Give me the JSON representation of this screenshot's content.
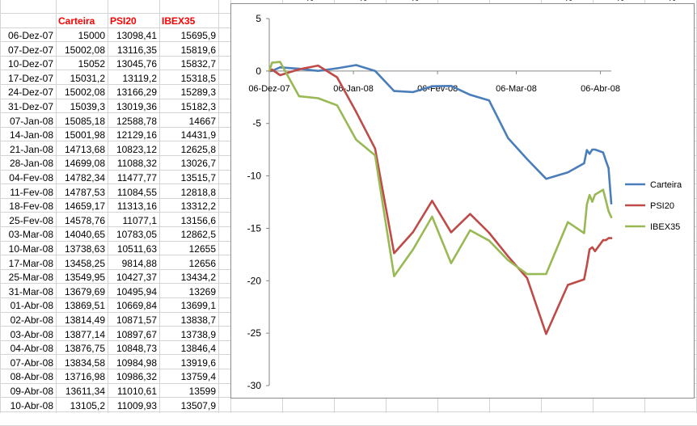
{
  "table": {
    "headers": [
      "Carteira",
      "PSI20",
      "IBEX35"
    ],
    "rows": [
      [
        "06-Dez-07",
        "15000",
        "13098,41",
        "15695,9"
      ],
      [
        "07-Dez-07",
        "15002,08",
        "13116,35",
        "15819,6"
      ],
      [
        "10-Dez-07",
        "15052",
        "13045,76",
        "15832,7"
      ],
      [
        "17-Dez-07",
        "15031,2",
        "13119,2",
        "15318,5"
      ],
      [
        "24-Dez-07",
        "15002,08",
        "13166,29",
        "15289,3"
      ],
      [
        "31-Dez-07",
        "15039,3",
        "13019,36",
        "15182,3"
      ],
      [
        "07-Jan-08",
        "15085,18",
        "12588,78",
        "14667"
      ],
      [
        "14-Jan-08",
        "15001,98",
        "12129,16",
        "14431,9"
      ],
      [
        "21-Jan-08",
        "14713,68",
        "10823,12",
        "12625,8"
      ],
      [
        "28-Jan-08",
        "14699,08",
        "11088,32",
        "13026,7"
      ],
      [
        "04-Fev-08",
        "14782,34",
        "11477,77",
        "13515,7"
      ],
      [
        "11-Fev-08",
        "14787,53",
        "11084,55",
        "12818,8"
      ],
      [
        "18-Fev-08",
        "14659,17",
        "11313,16",
        "13312,2"
      ],
      [
        "25-Fev-08",
        "14578,76",
        "11077,1",
        "13156,6"
      ],
      [
        "03-Mar-08",
        "14040,65",
        "10783,05",
        "12862,5"
      ],
      [
        "10-Mar-08",
        "13738,63",
        "10511,63",
        "12655"
      ],
      [
        "17-Mar-08",
        "13458,25",
        "9814,88",
        "12656"
      ],
      [
        "25-Mar-08",
        "13549,95",
        "10427,37",
        "13434,2"
      ],
      [
        "31-Mar-08",
        "13679,69",
        "10495,94",
        "13269"
      ],
      [
        "01-Abr-08",
        "13869,51",
        "10669,84",
        "13699,1"
      ],
      [
        "02-Abr-08",
        "13814,49",
        "10871,57",
        "13838,7"
      ],
      [
        "03-Abr-08",
        "13877,14",
        "10897,67",
        "13738,9"
      ],
      [
        "04-Abr-08",
        "13876,75",
        "10848,73",
        "13846,4"
      ],
      [
        "07-Abr-08",
        "13834,58",
        "10984,98",
        "13919,6"
      ],
      [
        "08-Abr-08",
        "13716,98",
        "10986,32",
        "13759,4"
      ],
      [
        "09-Abr-08",
        "13611,34",
        "11010,61",
        "13599"
      ],
      [
        "10-Abr-08",
        "13105,2",
        "11009,93",
        "13507,9"
      ]
    ]
  },
  "header_fragments": [
    "%",
    "%",
    "%",
    "%",
    "%",
    "%"
  ],
  "chart_data": {
    "type": "line",
    "title": "",
    "xlabel": "",
    "ylabel": "",
    "ylim": [
      -30,
      5
    ],
    "yticks": [
      5,
      0,
      -5,
      -10,
      -15,
      -20,
      -25,
      -30
    ],
    "ytick_labels": [
      "5",
      "0",
      "-5",
      "-10",
      "-15",
      "-20",
      "-25",
      "-30"
    ],
    "xticks": [
      "06-Dez-07",
      "06-Jan-08",
      "06-Fev-08",
      "06-Mar-08",
      "06-Abr-08"
    ],
    "x": [
      "06-Dez-07",
      "07-Dez-07",
      "10-Dez-07",
      "17-Dez-07",
      "24-Dez-07",
      "31-Dez-07",
      "07-Jan-08",
      "14-Jan-08",
      "21-Jan-08",
      "28-Jan-08",
      "04-Fev-08",
      "11-Fev-08",
      "18-Fev-08",
      "25-Fev-08",
      "03-Mar-08",
      "10-Mar-08",
      "17-Mar-08",
      "25-Mar-08",
      "31-Mar-08",
      "01-Abr-08",
      "02-Abr-08",
      "03-Abr-08",
      "04-Abr-08",
      "07-Abr-08",
      "08-Abr-08",
      "09-Abr-08",
      "10-Abr-08"
    ],
    "grid": false,
    "legend": "right",
    "series": [
      {
        "name": "Carteira",
        "color": "#4a7ebb",
        "values": [
          0,
          0.01,
          0.35,
          0.21,
          0.01,
          0.26,
          0.57,
          0.01,
          -1.91,
          -2.01,
          -1.45,
          -1.42,
          -2.27,
          -2.81,
          -6.4,
          -8.41,
          -10.28,
          -9.67,
          -8.8,
          -7.54,
          -7.9,
          -7.49,
          -7.49,
          -7.77,
          -8.55,
          -9.26,
          -12.63
        ]
      },
      {
        "name": "PSI20",
        "color": "#be4b48",
        "values": [
          0,
          0.14,
          -0.4,
          0.16,
          0.52,
          -0.6,
          -3.89,
          -7.4,
          -17.37,
          -15.35,
          -12.38,
          -15.38,
          -13.63,
          -15.43,
          -17.68,
          -19.75,
          -25.07,
          -20.4,
          -19.87,
          -18.54,
          -17.01,
          -16.81,
          -17.18,
          -16.13,
          -16.13,
          -15.94,
          -15.94
        ]
      },
      {
        "name": "IBEX35",
        "color": "#98b954",
        "values": [
          0,
          0.79,
          0.87,
          -2.41,
          -2.59,
          -3.27,
          -6.55,
          -8.05,
          -19.56,
          -17.01,
          -13.89,
          -18.33,
          -15.19,
          -16.18,
          -18.05,
          -19.37,
          -19.36,
          -14.41,
          -15.46,
          -12.72,
          -11.83,
          -12.47,
          -11.78,
          -11.32,
          -12.34,
          -13.36,
          -13.94
        ]
      }
    ]
  }
}
